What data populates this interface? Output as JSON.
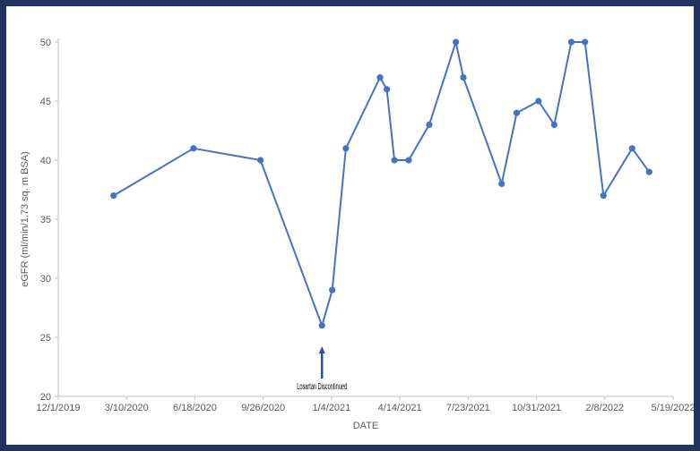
{
  "chart_data": {
    "type": "line",
    "title": "",
    "xlabel": "DATE",
    "ylabel": "eGFR (ml/min/1.73 sq. m BSA)",
    "ylim": [
      20,
      50
    ],
    "yticks": [
      "20",
      "25",
      "30",
      "35",
      "40",
      "45",
      "50"
    ],
    "xlim": [
      "2019-12-01",
      "2022-05-19"
    ],
    "xticks": [
      "12/1/2019",
      "3/10/2020",
      "6/18/2020",
      "9/26/2020",
      "1/4/2021",
      "4/14/2021",
      "7/23/2021",
      "10/31/2021",
      "2/8/2022",
      "5/19/2022"
    ],
    "grid": false,
    "legend": "none",
    "series": [
      {
        "color": "#4472c4",
        "x": [
          "2020-02-20",
          "2020-06-16",
          "2020-09-22",
          "2020-12-21",
          "2021-01-05",
          "2021-01-25",
          "2021-03-16",
          "2021-03-26",
          "2021-04-06",
          "2021-04-27",
          "2021-05-27",
          "2021-07-05",
          "2021-07-16",
          "2021-09-10",
          "2021-10-02",
          "2021-11-03",
          "2021-11-26",
          "2021-12-21",
          "2022-01-10",
          "2022-02-06",
          "2022-03-20",
          "2022-04-14"
        ],
        "y": [
          37,
          41,
          40,
          26,
          29,
          41,
          47,
          46,
          40,
          40,
          43,
          50,
          47,
          38,
          44,
          45,
          43,
          50,
          50,
          37,
          41,
          39
        ]
      }
    ],
    "annotation": {
      "text": "Losartan Discontinued",
      "x": "2020-12-21",
      "y": 20
    }
  }
}
